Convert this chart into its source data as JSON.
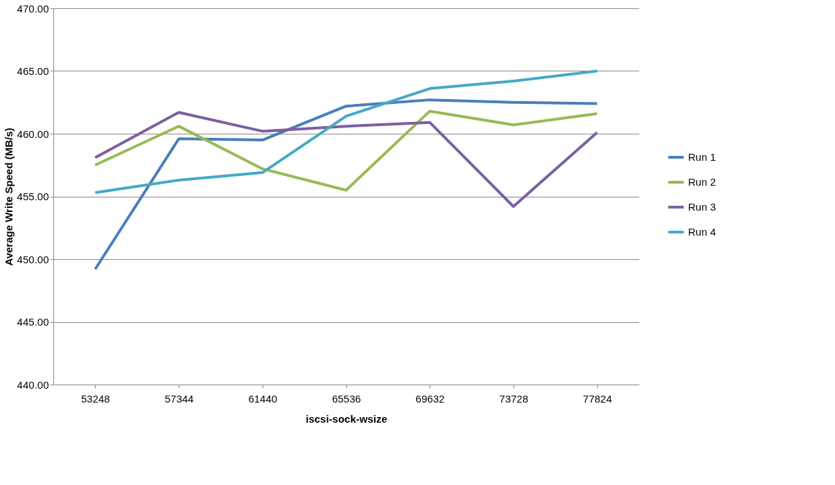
{
  "chart_data": {
    "type": "line",
    "xlabel": "iscsi-sock-wsize",
    "ylabel": "Average Write Speed (MB/s)",
    "categories": [
      "53248",
      "57344",
      "61440",
      "65536",
      "69632",
      "73728",
      "77824"
    ],
    "series": [
      {
        "name": "Run 1",
        "color": "#4a7ebb",
        "values": [
          449.2,
          459.6,
          459.5,
          462.2,
          462.7,
          462.5,
          462.4
        ]
      },
      {
        "name": "Run 2",
        "color": "#98b954",
        "values": [
          457.5,
          460.6,
          457.2,
          455.5,
          461.8,
          460.7,
          461.6
        ]
      },
      {
        "name": "Run 3",
        "color": "#7d5fa0",
        "values": [
          458.1,
          461.7,
          460.2,
          460.6,
          460.9,
          454.2,
          460.1
        ]
      },
      {
        "name": "Run 4",
        "color": "#46aac5",
        "values": [
          455.3,
          456.3,
          456.9,
          461.4,
          463.6,
          464.2,
          465.0
        ]
      }
    ],
    "ylim": [
      440,
      470
    ],
    "yticks": [
      {
        "value": 440,
        "label": "440.00"
      },
      {
        "value": 445,
        "label": "445.00"
      },
      {
        "value": 450,
        "label": "450.00"
      },
      {
        "value": 455,
        "label": "455.00"
      },
      {
        "value": 460,
        "label": "460.00"
      },
      {
        "value": 465,
        "label": "465.00"
      },
      {
        "value": 470,
        "label": "470.00"
      }
    ],
    "grid": "y",
    "legend": "right",
    "marker": "none",
    "line_style": "solid"
  }
}
